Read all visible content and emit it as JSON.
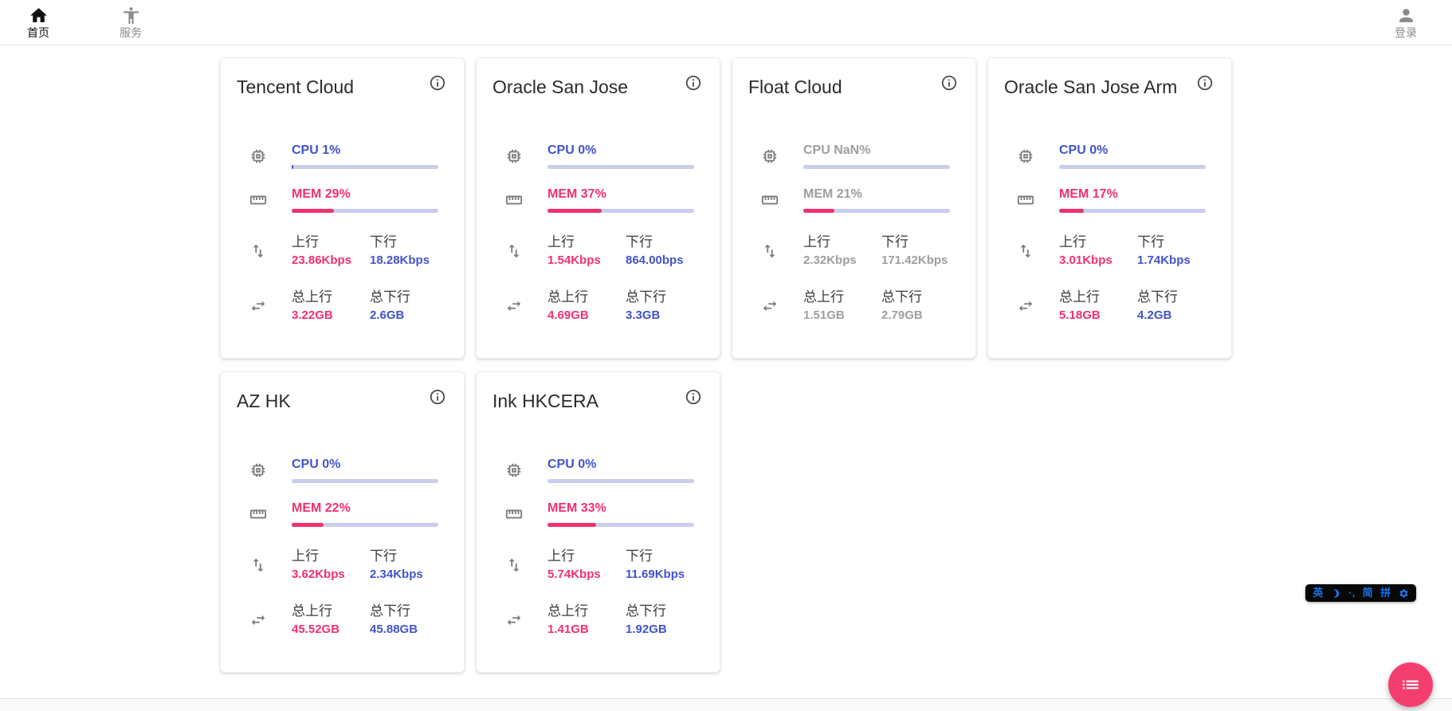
{
  "colors": {
    "blue": "#4353c9",
    "pink": "#f0316e",
    "track": "#c9cdee",
    "gray": "#9e9e9e",
    "imeblue": "#1a73e8",
    "fab": "#f43f6e"
  },
  "nav": {
    "items": [
      {
        "label": "首页",
        "icon": "home-icon",
        "active": true
      },
      {
        "label": "服务",
        "icon": "accessibility-icon",
        "active": false
      }
    ],
    "login_label": "登录"
  },
  "labels": {
    "upload": "上行",
    "download": "下行",
    "total_upload": "总上行",
    "total_download": "总下行"
  },
  "servers": [
    {
      "name": "Tencent Cloud",
      "online": true,
      "cpu_label": "CPU 1%",
      "cpu_pct": 1,
      "mem_label": "MEM 29%",
      "mem_pct": 29,
      "upload": "23.86Kbps",
      "download": "18.28Kbps",
      "total_upload": "3.22GB",
      "total_download": "2.6GB"
    },
    {
      "name": "Oracle San Jose",
      "online": true,
      "cpu_label": "CPU 0%",
      "cpu_pct": 0,
      "mem_label": "MEM 37%",
      "mem_pct": 37,
      "upload": "1.54Kbps",
      "download": "864.00bps",
      "total_upload": "4.69GB",
      "total_download": "3.3GB"
    },
    {
      "name": "Float Cloud",
      "online": false,
      "cpu_label": "CPU NaN%",
      "cpu_pct": null,
      "mem_label": "MEM 21%",
      "mem_pct": 21,
      "upload": "2.32Kbps",
      "download": "171.42Kbps",
      "total_upload": "1.51GB",
      "total_download": "2.79GB"
    },
    {
      "name": "Oracle San Jose Arm",
      "online": true,
      "cpu_label": "CPU 0%",
      "cpu_pct": 0,
      "mem_label": "MEM 17%",
      "mem_pct": 17,
      "upload": "3.01Kbps",
      "download": "1.74Kbps",
      "total_upload": "5.18GB",
      "total_download": "4.2GB"
    },
    {
      "name": "AZ HK",
      "online": true,
      "cpu_label": "CPU 0%",
      "cpu_pct": 0,
      "mem_label": "MEM 22%",
      "mem_pct": 22,
      "upload": "3.62Kbps",
      "download": "2.34Kbps",
      "total_upload": "45.52GB",
      "total_download": "45.88GB"
    },
    {
      "name": "Ink HKCERA",
      "online": true,
      "cpu_label": "CPU 0%",
      "cpu_pct": 0,
      "mem_label": "MEM 33%",
      "mem_pct": 33,
      "upload": "5.74Kbps",
      "download": "11.69Kbps",
      "total_upload": "1.41GB",
      "total_download": "1.92GB"
    }
  ],
  "ime": {
    "english": "英",
    "punctuation": "·,",
    "simplified": "简",
    "pinyin": "拼"
  }
}
